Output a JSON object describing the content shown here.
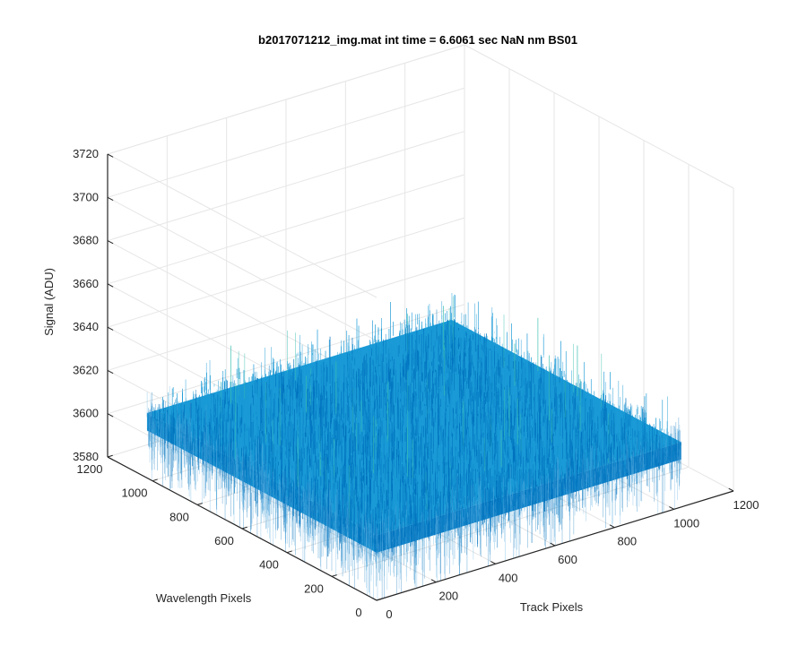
{
  "chart_data": {
    "type": "surface",
    "title": "b2017071212_img.mat int time = 6.6061 sec  NaN nm BS01",
    "xlabel": "Track Pixels",
    "ylabel": "Wavelength Pixels",
    "zlabel": "Signal (ADU)",
    "xlim": [
      0,
      1200
    ],
    "ylim": [
      0,
      1200
    ],
    "zlim": [
      3580,
      3720
    ],
    "xticks": [
      0,
      200,
      400,
      600,
      800,
      1000,
      1200
    ],
    "yticks": [
      0,
      200,
      400,
      600,
      800,
      1000,
      1200
    ],
    "zticks": [
      3580,
      3600,
      3620,
      3640,
      3660,
      3680,
      3700,
      3720
    ],
    "xtick_labels": [
      "0",
      "200",
      "400",
      "600",
      "800",
      "1000",
      "1200"
    ],
    "ytick_labels": [
      "0",
      "200",
      "400",
      "600",
      "800",
      "1000",
      "1200"
    ],
    "ztick_labels": [
      "3580",
      "3600",
      "3620",
      "3640",
      "3660",
      "3680",
      "3700",
      "3720"
    ],
    "data_extent": {
      "x": [
        0,
        1024
      ],
      "y": [
        0,
        1024
      ]
    },
    "signal_mean": 3610,
    "signal_noise_range": [
      3580,
      3660
    ],
    "grid": true,
    "colormap": "parula",
    "colors": {
      "surface_low": "#0072bd",
      "surface_mid": "#1a9ad6",
      "surface_high": "#3bbfb0",
      "axis": "#262626",
      "grid": "#e6e6e6"
    }
  }
}
